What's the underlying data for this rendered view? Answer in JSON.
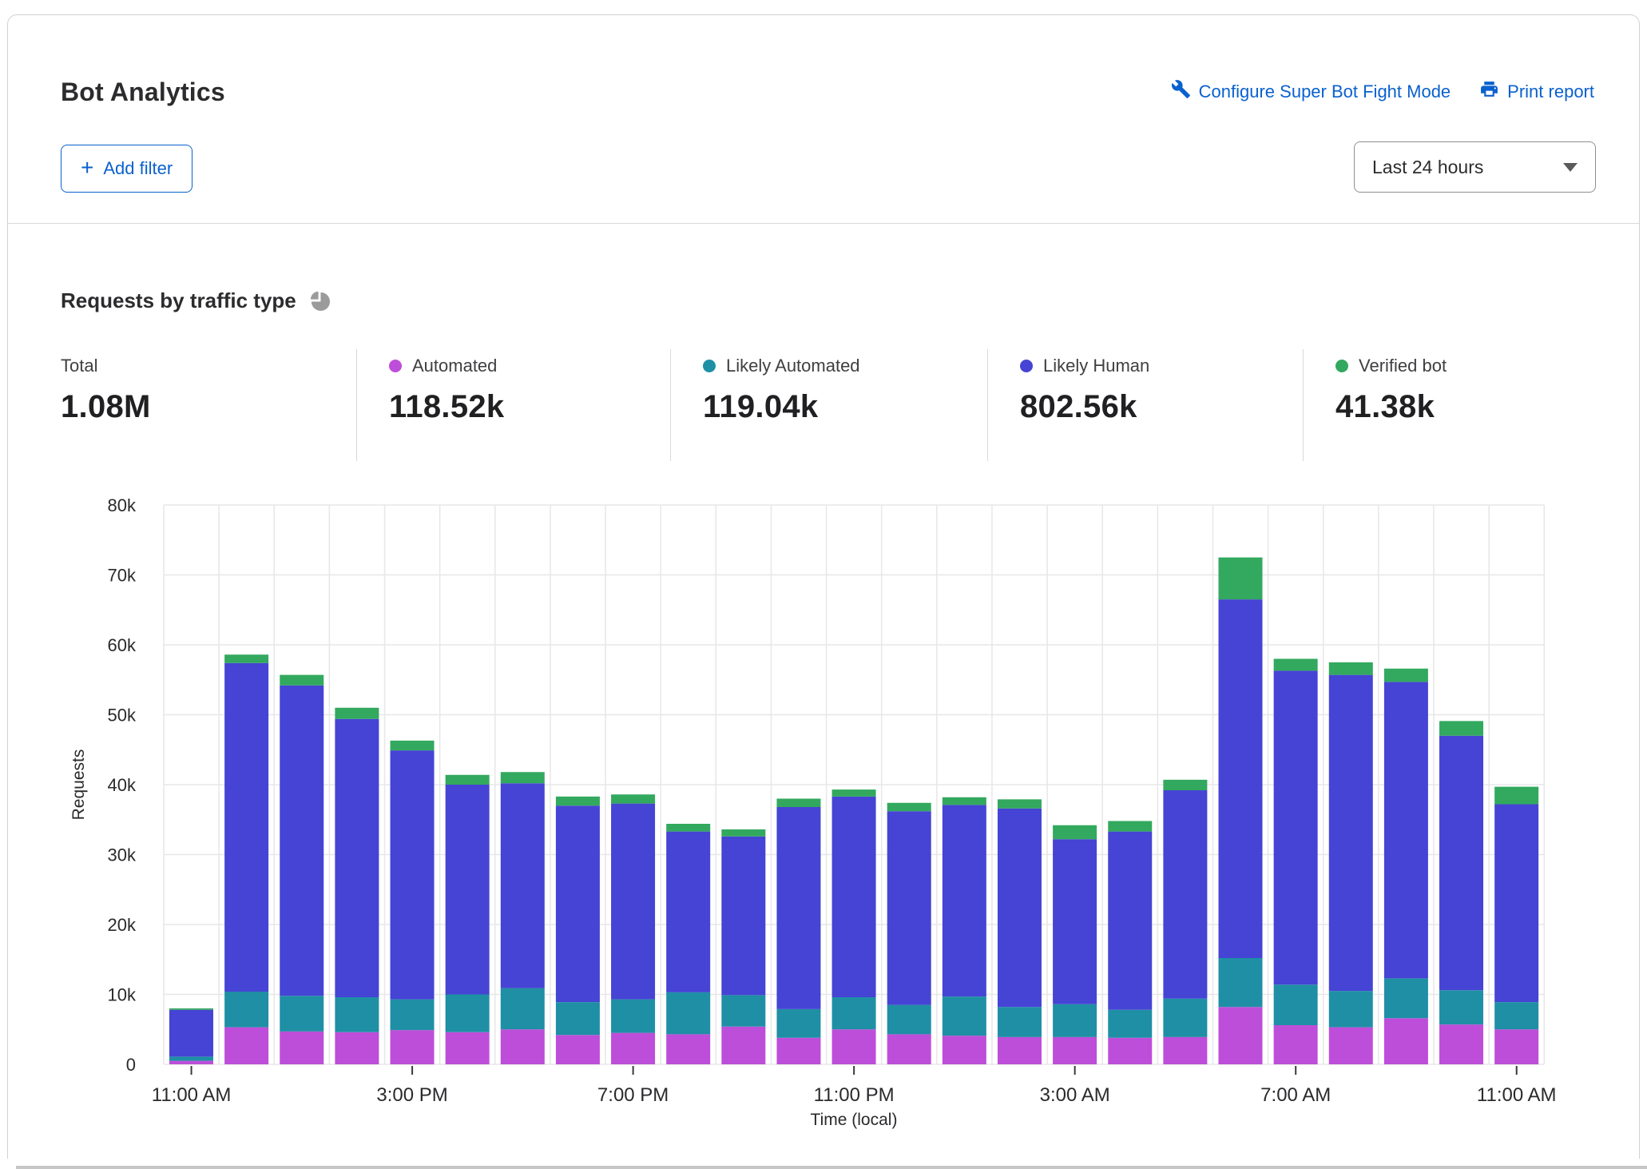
{
  "header": {
    "title": "Bot Analytics",
    "configure_link": "Configure Super Bot Fight Mode",
    "print_link": "Print report",
    "add_filter_plus": "+",
    "add_filter_label": "Add filter",
    "time_range_value": "Last 24 hours"
  },
  "section": {
    "title": "Requests by traffic type"
  },
  "stats": [
    {
      "label": "Total",
      "value": "1.08M",
      "color": null
    },
    {
      "label": "Automated",
      "value": "118.52k",
      "color": "#bd4ed9"
    },
    {
      "label": "Likely Automated",
      "value": "119.04k",
      "color": "#1f8fa5"
    },
    {
      "label": "Likely Human",
      "value": "802.56k",
      "color": "#4544d4"
    },
    {
      "label": "Verified bot",
      "value": "41.38k",
      "color": "#32a95e"
    }
  ],
  "chart_data": {
    "type": "bar",
    "stacked": true,
    "title": "Requests by traffic type",
    "xlabel": "Time (local)",
    "ylabel": "Requests",
    "ylim_k": [
      0,
      80
    ],
    "grid": true,
    "y_ticks": [
      "0",
      "10k",
      "20k",
      "30k",
      "40k",
      "50k",
      "60k",
      "70k",
      "80k"
    ],
    "x_tick_labels": [
      "11:00 AM",
      "3:00 PM",
      "7:00 PM",
      "11:00 PM",
      "3:00 AM",
      "7:00 AM",
      "11:00 AM"
    ],
    "x_tick_bar_indices": [
      0,
      4,
      8,
      12,
      16,
      20,
      24
    ],
    "bar_count": 25,
    "series": [
      {
        "name": "Automated",
        "key": "automated",
        "color": "#bd4ed9",
        "values_k": [
          0.5,
          5.3,
          4.7,
          4.6,
          4.9,
          4.6,
          5.0,
          4.2,
          4.5,
          4.3,
          5.4,
          3.8,
          5.0,
          4.3,
          4.1,
          3.9,
          3.9,
          3.8,
          3.9,
          8.2,
          5.6,
          5.3,
          6.6,
          5.7,
          5.0
        ]
      },
      {
        "name": "Likely Automated",
        "key": "likely-automated",
        "color": "#1f8fa5",
        "values_k": [
          0.6,
          5.1,
          5.1,
          5.0,
          4.4,
          5.4,
          5.9,
          4.7,
          4.8,
          6.0,
          4.5,
          4.1,
          4.6,
          4.2,
          5.6,
          4.3,
          4.7,
          4.0,
          5.5,
          7.0,
          5.8,
          5.2,
          5.7,
          4.9,
          3.9
        ]
      },
      {
        "name": "Likely Human",
        "key": "likely-human",
        "color": "#4544d4",
        "values_k": [
          6.7,
          47.0,
          44.4,
          39.8,
          35.6,
          30.0,
          29.3,
          28.1,
          28.0,
          23.0,
          22.7,
          28.9,
          28.7,
          27.7,
          27.4,
          28.4,
          23.6,
          25.5,
          29.8,
          51.3,
          44.9,
          45.2,
          42.4,
          36.4,
          28.3
        ]
      },
      {
        "name": "Verified bot",
        "key": "verified-bot",
        "color": "#32a95e",
        "values_k": [
          0.2,
          1.2,
          1.5,
          1.6,
          1.4,
          1.4,
          1.6,
          1.3,
          1.3,
          1.1,
          1.0,
          1.2,
          1.0,
          1.2,
          1.1,
          1.3,
          2.0,
          1.5,
          1.5,
          6.0,
          1.7,
          1.8,
          1.9,
          2.1,
          2.5
        ]
      }
    ]
  }
}
